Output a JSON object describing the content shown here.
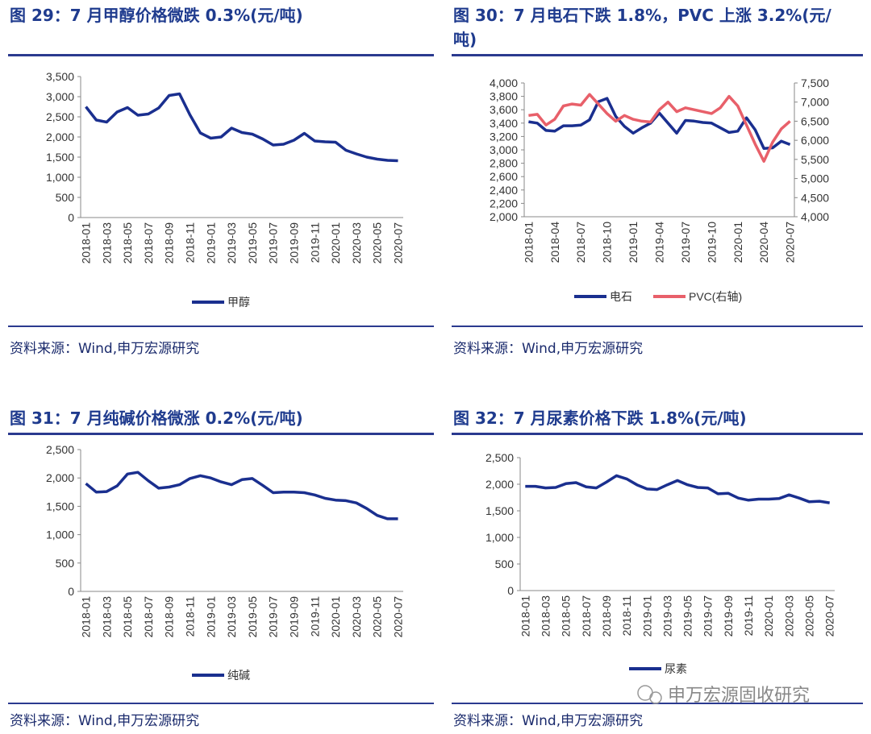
{
  "chart_data": [
    {
      "type": "line",
      "title": "图 29：7 月甲醇价格微跌 0.3%(元/吨)",
      "source": "资料来源：Wind,申万宏源研究",
      "categories": [
        "2018-01",
        null,
        "2018-03",
        null,
        "2018-05",
        null,
        "2018-07",
        null,
        "2018-09",
        null,
        "2018-11",
        null,
        "2019-01",
        null,
        "2019-03",
        null,
        "2019-05",
        null,
        "2019-07",
        null,
        "2019-09",
        null,
        "2019-11",
        null,
        "2020-01",
        null,
        "2020-03",
        null,
        "2020-05",
        null,
        "2020-07"
      ],
      "series": [
        {
          "name": "甲醇",
          "color": "#1a2f8f",
          "values": [
            2750,
            2420,
            2370,
            2620,
            2730,
            2540,
            2570,
            2720,
            3030,
            3070,
            2550,
            2100,
            1970,
            2000,
            2220,
            2110,
            2070,
            1950,
            1800,
            1820,
            1920,
            2090,
            1900,
            1880,
            1870,
            1670,
            1580,
            1500,
            1450,
            1420,
            1410
          ]
        }
      ],
      "ylim": [
        0,
        3500
      ],
      "yticks": [
        0,
        500,
        {
          "value": 1000,
          "label": "1,000"
        },
        {
          "value": 1500,
          "label": "1,500"
        },
        {
          "value": 2000,
          "label": "2,000"
        },
        {
          "value": 2500,
          "label": "2,500"
        },
        {
          "value": 3000,
          "label": "3,000"
        },
        {
          "value": 3500,
          "label": "3,500"
        }
      ]
    },
    {
      "type": "line",
      "title": "图 30：7 月电石下跌 1.8%，PVC 上涨 3.2%(元/吨)",
      "source": "资料来源：Wind,申万宏源研究",
      "categories": [
        "2018-01",
        null,
        null,
        "2018-04",
        null,
        null,
        "2018-07",
        null,
        null,
        "2018-10",
        null,
        null,
        "2019-01",
        null,
        null,
        "2019-04",
        null,
        null,
        "2019-07",
        null,
        null,
        "2019-10",
        null,
        null,
        "2020-01",
        null,
        null,
        "2020-04",
        null,
        null,
        "2020-07"
      ],
      "series": [
        {
          "name": "电石",
          "color": "#1a2f8f",
          "values": [
            3420,
            3400,
            3290,
            3280,
            3360,
            3360,
            3370,
            3450,
            3720,
            3770,
            3500,
            3350,
            3250,
            3330,
            3400,
            3550,
            3400,
            3250,
            3440,
            3430,
            3410,
            3400,
            3330,
            3260,
            3280,
            3480,
            3300,
            3020,
            3030,
            3130,
            3080
          ]
        },
        {
          "name": "PVC(右轴)",
          "color": "#e8606a",
          "axis": "y2",
          "values": [
            6650,
            6680,
            6400,
            6550,
            6900,
            6950,
            6920,
            7200,
            6950,
            6700,
            6500,
            6650,
            6550,
            6500,
            6480,
            6800,
            7000,
            6750,
            6850,
            6800,
            6750,
            6700,
            6850,
            7150,
            6900,
            6400,
            5900,
            5450,
            5950,
            6300,
            6500
          ]
        }
      ],
      "ylim": [
        2000,
        4000
      ],
      "yticks": [
        {
          "value": 2000,
          "label": "2,000"
        },
        {
          "value": 2200,
          "label": "2,200"
        },
        {
          "value": 2400,
          "label": "2,400"
        },
        {
          "value": 2600,
          "label": "2,600"
        },
        {
          "value": 2800,
          "label": "2,800"
        },
        {
          "value": 3000,
          "label": "3,000"
        },
        {
          "value": 3200,
          "label": "3,200"
        },
        {
          "value": 3400,
          "label": "3,400"
        },
        {
          "value": 3600,
          "label": "3,600"
        },
        {
          "value": 3800,
          "label": "3,800"
        },
        {
          "value": 4000,
          "label": "4,000"
        }
      ],
      "y2lim": [
        4000,
        7500
      ],
      "y2ticks": [
        {
          "value": 4000,
          "label": "4,000"
        },
        {
          "value": 4500,
          "label": "4,500"
        },
        {
          "value": 5000,
          "label": "5,000"
        },
        {
          "value": 5500,
          "label": "5,500"
        },
        {
          "value": 6000,
          "label": "6,000"
        },
        {
          "value": 6500,
          "label": "6,500"
        },
        {
          "value": 7000,
          "label": "7,000"
        },
        {
          "value": 7500,
          "label": "7,500"
        }
      ]
    },
    {
      "type": "line",
      "title": "图 31：7 月纯碱价格微涨 0.2%(元/吨)",
      "source": "资料来源：Wind,申万宏源研究",
      "categories": [
        "2018-01",
        null,
        "2018-03",
        null,
        "2018-05",
        null,
        "2018-07",
        null,
        "2018-09",
        null,
        "2018-11",
        null,
        "2019-01",
        null,
        "2019-03",
        null,
        "2019-05",
        null,
        "2019-07",
        null,
        "2019-09",
        null,
        "2019-11",
        null,
        "2020-01",
        null,
        "2020-03",
        null,
        "2020-05",
        null,
        "2020-07"
      ],
      "series": [
        {
          "name": "纯碱",
          "color": "#1a2f8f",
          "values": [
            1900,
            1750,
            1760,
            1860,
            2070,
            2100,
            1950,
            1820,
            1840,
            1880,
            1990,
            2040,
            2000,
            1930,
            1880,
            1970,
            1990,
            1870,
            1740,
            1750,
            1750,
            1740,
            1700,
            1640,
            1610,
            1600,
            1560,
            1460,
            1340,
            1280,
            1280
          ]
        }
      ],
      "ylim": [
        0,
        2500
      ],
      "yticks": [
        0,
        500,
        {
          "value": 1000,
          "label": "1,000"
        },
        {
          "value": 1500,
          "label": "1,500"
        },
        {
          "value": 2000,
          "label": "2,000"
        },
        {
          "value": 2500,
          "label": "2,500"
        }
      ]
    },
    {
      "type": "line",
      "title": "图 32：7 月尿素价格下跌 1.8%(元/吨)",
      "source": "资料来源：Wind,申万宏源研究",
      "categories": [
        "2018-01",
        null,
        "2018-03",
        null,
        "2018-05",
        null,
        "2018-07",
        null,
        "2018-09",
        null,
        "2018-11",
        null,
        "2019-01",
        null,
        "2019-03",
        null,
        "2019-05",
        null,
        "2019-07",
        null,
        "2019-09",
        null,
        "2019-11",
        null,
        "2020-01",
        null,
        "2020-03",
        null,
        "2020-05",
        null,
        "2020-07"
      ],
      "series": [
        {
          "name": "尿素",
          "color": "#1a2f8f",
          "values": [
            1960,
            1960,
            1930,
            1940,
            2010,
            2030,
            1950,
            1930,
            2040,
            2160,
            2100,
            1990,
            1910,
            1900,
            1990,
            2070,
            1990,
            1940,
            1930,
            1820,
            1830,
            1740,
            1700,
            1720,
            1720,
            1730,
            1800,
            1740,
            1670,
            1680,
            1650
          ]
        }
      ],
      "ylim": [
        0,
        2500
      ],
      "yticks": [
        0,
        500,
        {
          "value": 1000,
          "label": "1,000"
        },
        {
          "value": 1500,
          "label": "1,500"
        },
        {
          "value": 2000,
          "label": "2,000"
        },
        {
          "value": 2500,
          "label": "2,500"
        }
      ]
    }
  ],
  "watermark": "申万宏源固收研究"
}
